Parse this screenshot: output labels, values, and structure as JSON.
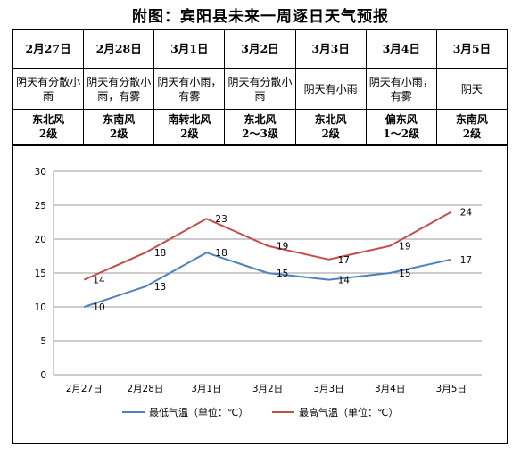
{
  "title": "附图：宾阳县未来一周逐日天气预报",
  "forecast": {
    "dates": [
      "2月27日",
      "2月28日",
      "3月1日",
      "3月2日",
      "3月3日",
      "3月4日",
      "3月5日"
    ],
    "weather": [
      "阴天有分散小雨",
      "阴天有分散小雨，有雾",
      "阴天有小雨，有雾",
      "阴天有分散小雨",
      "阴天有小雨",
      "阴天有小雨，有雾",
      "阴天"
    ],
    "wind": [
      [
        "东北风",
        "2级"
      ],
      [
        "东南风",
        "2级"
      ],
      [
        "南转北风",
        "2级"
      ],
      [
        "东北风",
        "2～3级"
      ],
      [
        "东北风",
        "2级"
      ],
      [
        "偏东风",
        "1～2级"
      ],
      [
        "东南风",
        "2级"
      ]
    ]
  },
  "chart_data": {
    "type": "line",
    "categories": [
      "2月27日",
      "2月28日",
      "3月1日",
      "3月2日",
      "3月3日",
      "3月4日",
      "3月5日"
    ],
    "series": [
      {
        "name": "最低气温（单位：℃）",
        "values": [
          10,
          13,
          18,
          15,
          14,
          15,
          17
        ],
        "color": "#4f81bd"
      },
      {
        "name": "最高气温（单位：℃）",
        "values": [
          14,
          18,
          23,
          19,
          17,
          19,
          24
        ],
        "color": "#c0504d"
      }
    ],
    "y_ticks": [
      "0",
      "5",
      "10",
      "15",
      "20",
      "25",
      "30"
    ],
    "ylim": [
      0,
      30
    ],
    "grid": true,
    "legend_position": "bottom"
  }
}
